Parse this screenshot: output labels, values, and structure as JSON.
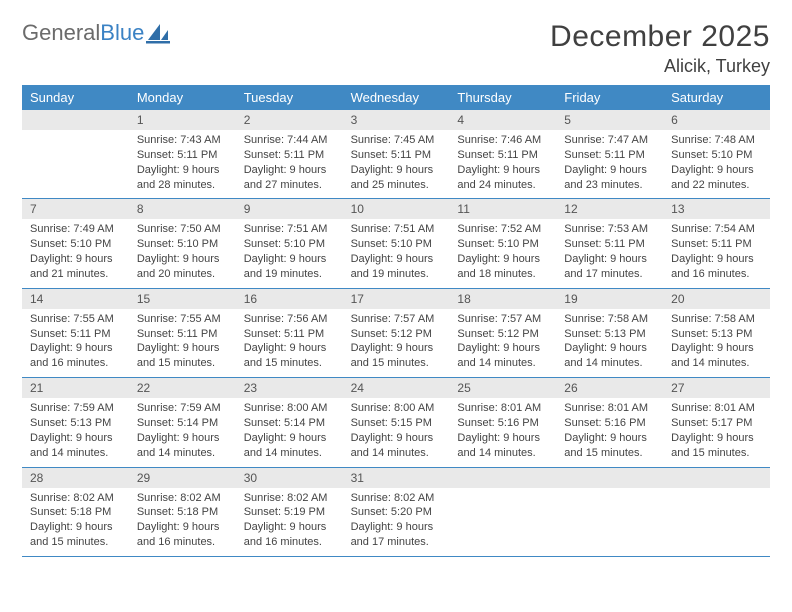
{
  "brand": {
    "part1": "General",
    "part2": "Blue"
  },
  "title": "December 2025",
  "location": "Alicik, Turkey",
  "colors": {
    "header_blue": "#4089c4",
    "daynum_bg": "#e9e9e9",
    "text_gray": "#404040",
    "body_text": "#444444",
    "logo_gray": "#6b6b6b",
    "logo_blue": "#3b82c4",
    "white": "#ffffff"
  },
  "day_names": [
    "Sunday",
    "Monday",
    "Tuesday",
    "Wednesday",
    "Thursday",
    "Friday",
    "Saturday"
  ],
  "weeks": [
    [
      {
        "daynum": "",
        "lines": []
      },
      {
        "daynum": "1",
        "lines": [
          "Sunrise: 7:43 AM",
          "Sunset: 5:11 PM",
          "Daylight: 9 hours and 28 minutes."
        ]
      },
      {
        "daynum": "2",
        "lines": [
          "Sunrise: 7:44 AM",
          "Sunset: 5:11 PM",
          "Daylight: 9 hours and 27 minutes."
        ]
      },
      {
        "daynum": "3",
        "lines": [
          "Sunrise: 7:45 AM",
          "Sunset: 5:11 PM",
          "Daylight: 9 hours and 25 minutes."
        ]
      },
      {
        "daynum": "4",
        "lines": [
          "Sunrise: 7:46 AM",
          "Sunset: 5:11 PM",
          "Daylight: 9 hours and 24 minutes."
        ]
      },
      {
        "daynum": "5",
        "lines": [
          "Sunrise: 7:47 AM",
          "Sunset: 5:11 PM",
          "Daylight: 9 hours and 23 minutes."
        ]
      },
      {
        "daynum": "6",
        "lines": [
          "Sunrise: 7:48 AM",
          "Sunset: 5:10 PM",
          "Daylight: 9 hours and 22 minutes."
        ]
      }
    ],
    [
      {
        "daynum": "7",
        "lines": [
          "Sunrise: 7:49 AM",
          "Sunset: 5:10 PM",
          "Daylight: 9 hours and 21 minutes."
        ]
      },
      {
        "daynum": "8",
        "lines": [
          "Sunrise: 7:50 AM",
          "Sunset: 5:10 PM",
          "Daylight: 9 hours and 20 minutes."
        ]
      },
      {
        "daynum": "9",
        "lines": [
          "Sunrise: 7:51 AM",
          "Sunset: 5:10 PM",
          "Daylight: 9 hours and 19 minutes."
        ]
      },
      {
        "daynum": "10",
        "lines": [
          "Sunrise: 7:51 AM",
          "Sunset: 5:10 PM",
          "Daylight: 9 hours and 19 minutes."
        ]
      },
      {
        "daynum": "11",
        "lines": [
          "Sunrise: 7:52 AM",
          "Sunset: 5:10 PM",
          "Daylight: 9 hours and 18 minutes."
        ]
      },
      {
        "daynum": "12",
        "lines": [
          "Sunrise: 7:53 AM",
          "Sunset: 5:11 PM",
          "Daylight: 9 hours and 17 minutes."
        ]
      },
      {
        "daynum": "13",
        "lines": [
          "Sunrise: 7:54 AM",
          "Sunset: 5:11 PM",
          "Daylight: 9 hours and 16 minutes."
        ]
      }
    ],
    [
      {
        "daynum": "14",
        "lines": [
          "Sunrise: 7:55 AM",
          "Sunset: 5:11 PM",
          "Daylight: 9 hours and 16 minutes."
        ]
      },
      {
        "daynum": "15",
        "lines": [
          "Sunrise: 7:55 AM",
          "Sunset: 5:11 PM",
          "Daylight: 9 hours and 15 minutes."
        ]
      },
      {
        "daynum": "16",
        "lines": [
          "Sunrise: 7:56 AM",
          "Sunset: 5:11 PM",
          "Daylight: 9 hours and 15 minutes."
        ]
      },
      {
        "daynum": "17",
        "lines": [
          "Sunrise: 7:57 AM",
          "Sunset: 5:12 PM",
          "Daylight: 9 hours and 15 minutes."
        ]
      },
      {
        "daynum": "18",
        "lines": [
          "Sunrise: 7:57 AM",
          "Sunset: 5:12 PM",
          "Daylight: 9 hours and 14 minutes."
        ]
      },
      {
        "daynum": "19",
        "lines": [
          "Sunrise: 7:58 AM",
          "Sunset: 5:13 PM",
          "Daylight: 9 hours and 14 minutes."
        ]
      },
      {
        "daynum": "20",
        "lines": [
          "Sunrise: 7:58 AM",
          "Sunset: 5:13 PM",
          "Daylight: 9 hours and 14 minutes."
        ]
      }
    ],
    [
      {
        "daynum": "21",
        "lines": [
          "Sunrise: 7:59 AM",
          "Sunset: 5:13 PM",
          "Daylight: 9 hours and 14 minutes."
        ]
      },
      {
        "daynum": "22",
        "lines": [
          "Sunrise: 7:59 AM",
          "Sunset: 5:14 PM",
          "Daylight: 9 hours and 14 minutes."
        ]
      },
      {
        "daynum": "23",
        "lines": [
          "Sunrise: 8:00 AM",
          "Sunset: 5:14 PM",
          "Daylight: 9 hours and 14 minutes."
        ]
      },
      {
        "daynum": "24",
        "lines": [
          "Sunrise: 8:00 AM",
          "Sunset: 5:15 PM",
          "Daylight: 9 hours and 14 minutes."
        ]
      },
      {
        "daynum": "25",
        "lines": [
          "Sunrise: 8:01 AM",
          "Sunset: 5:16 PM",
          "Daylight: 9 hours and 14 minutes."
        ]
      },
      {
        "daynum": "26",
        "lines": [
          "Sunrise: 8:01 AM",
          "Sunset: 5:16 PM",
          "Daylight: 9 hours and 15 minutes."
        ]
      },
      {
        "daynum": "27",
        "lines": [
          "Sunrise: 8:01 AM",
          "Sunset: 5:17 PM",
          "Daylight: 9 hours and 15 minutes."
        ]
      }
    ],
    [
      {
        "daynum": "28",
        "lines": [
          "Sunrise: 8:02 AM",
          "Sunset: 5:18 PM",
          "Daylight: 9 hours and 15 minutes."
        ]
      },
      {
        "daynum": "29",
        "lines": [
          "Sunrise: 8:02 AM",
          "Sunset: 5:18 PM",
          "Daylight: 9 hours and 16 minutes."
        ]
      },
      {
        "daynum": "30",
        "lines": [
          "Sunrise: 8:02 AM",
          "Sunset: 5:19 PM",
          "Daylight: 9 hours and 16 minutes."
        ]
      },
      {
        "daynum": "31",
        "lines": [
          "Sunrise: 8:02 AM",
          "Sunset: 5:20 PM",
          "Daylight: 9 hours and 17 minutes."
        ]
      },
      {
        "daynum": "",
        "lines": []
      },
      {
        "daynum": "",
        "lines": []
      },
      {
        "daynum": "",
        "lines": []
      }
    ]
  ]
}
